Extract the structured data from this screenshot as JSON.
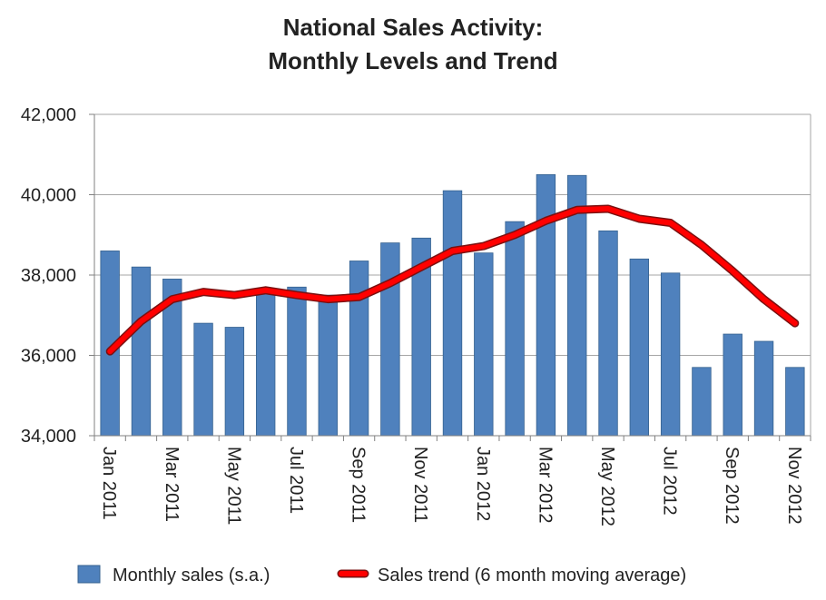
{
  "title": [
    "National Sales Activity:",
    "Monthly Levels and Trend"
  ],
  "colors": {
    "bar": "#4f81bd",
    "bar_stroke": "#35618f",
    "trend": "#ff0000",
    "trend_outline": "#7a1010",
    "grid": "#a6a6a6"
  },
  "chart_data": {
    "type": "bar",
    "title": "National Sales Activity: Monthly Levels and Trend",
    "xlabel": "",
    "ylabel": "",
    "ylim": [
      34000,
      42000
    ],
    "yticks": [
      34000,
      36000,
      38000,
      40000,
      42000
    ],
    "ytick_labels": [
      "34,000",
      "36,000",
      "38,000",
      "40,000",
      "42,000"
    ],
    "categories": [
      "Jan 2011",
      "Feb 2011",
      "Mar 2011",
      "Apr 2011",
      "May 2011",
      "Jun 2011",
      "Jul 2011",
      "Aug 2011",
      "Sep 2011",
      "Oct 2011",
      "Nov 2011",
      "Dec 2011",
      "Jan 2012",
      "Feb 2012",
      "Mar 2012",
      "Apr 2012",
      "May 2012",
      "Jun 2012",
      "Jul 2012",
      "Aug 2012",
      "Sep 2012",
      "Oct 2012",
      "Nov 2012"
    ],
    "xtick_labels": [
      "Jan 2011",
      "",
      "Mar 2011",
      "",
      "May 2011",
      "",
      "Jul 2011",
      "",
      "Sep 2011",
      "",
      "Nov 2011",
      "",
      "Jan 2012",
      "",
      "Mar 2012",
      "",
      "May 2012",
      "",
      "Jul 2012",
      "",
      "Sep 2012",
      "",
      "Nov 2012"
    ],
    "grid": true,
    "legend_position": "bottom",
    "series": [
      {
        "name": "Monthly sales (s.a.)",
        "kind": "bar",
        "values": [
          38600,
          38200,
          37900,
          36800,
          36700,
          37600,
          37700,
          37500,
          38350,
          38800,
          38920,
          40100,
          38550,
          39330,
          40500,
          40480,
          39100,
          38400,
          38050,
          35700,
          36530,
          36350,
          35700
        ]
      },
      {
        "name": "Sales trend (6 month moving average)",
        "kind": "line",
        "values": [
          36100,
          36850,
          37400,
          37580,
          37500,
          37620,
          37500,
          37400,
          37450,
          37800,
          38200,
          38600,
          38720,
          39000,
          39350,
          39620,
          39650,
          39400,
          39300,
          38750,
          38100,
          37400,
          36800
        ]
      }
    ]
  }
}
